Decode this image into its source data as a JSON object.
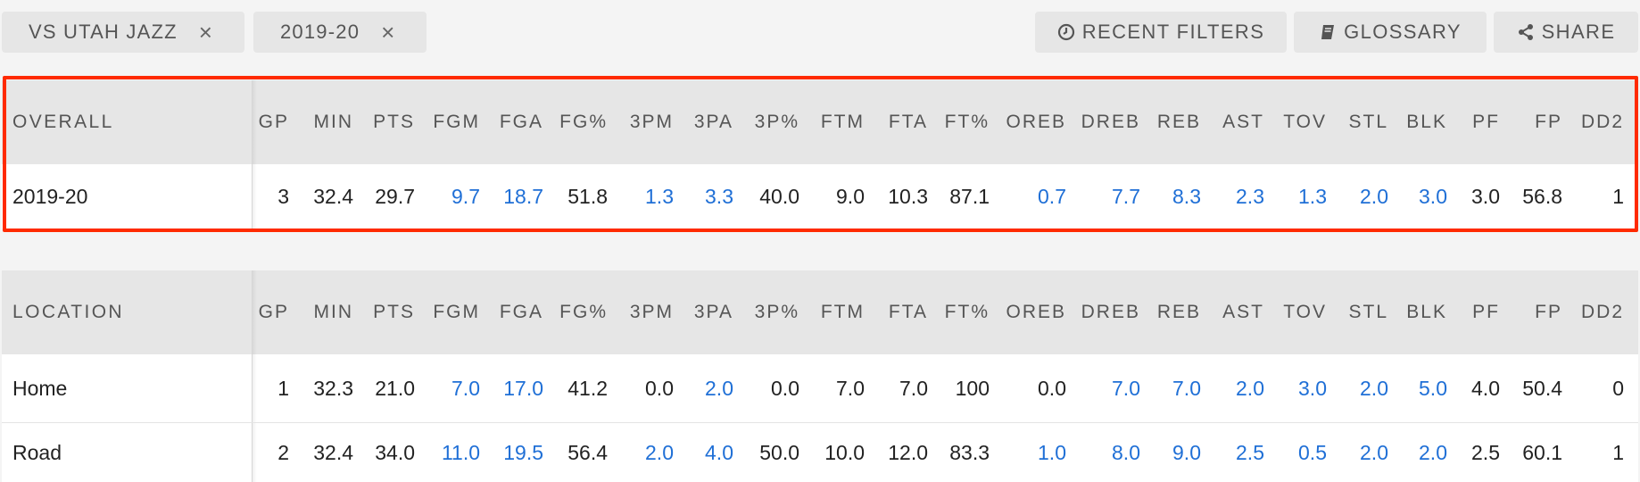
{
  "filters": [
    {
      "label": "VS UTAH JAZZ",
      "remove": "×"
    },
    {
      "label": "2019-20",
      "remove": "×"
    }
  ],
  "actions": {
    "recent_filters": "RECENT FILTERS",
    "glossary": "GLOSSARY",
    "share": "SHARE"
  },
  "columns": [
    "GP",
    "MIN",
    "PTS",
    "FGM",
    "FGA",
    "FG%",
    "3PM",
    "3PA",
    "3P%",
    "FTM",
    "FTA",
    "FT%",
    "OREB",
    "DREB",
    "REB",
    "AST",
    "TOV",
    "STL",
    "BLK",
    "PF",
    "FP",
    "DD2"
  ],
  "overall": {
    "title": "OVERALL",
    "rows": [
      {
        "label": "2019-20",
        "values": [
          "3",
          "32.4",
          "29.7",
          "9.7",
          "18.7",
          "51.8",
          "1.3",
          "3.3",
          "40.0",
          "9.0",
          "10.3",
          "87.1",
          "0.7",
          "7.7",
          "8.3",
          "2.3",
          "1.3",
          "2.0",
          "3.0",
          "3.0",
          "56.8",
          "1"
        ]
      }
    ]
  },
  "location": {
    "title": "LOCATION",
    "rows": [
      {
        "label": "Home",
        "values": [
          "1",
          "32.3",
          "21.0",
          "7.0",
          "17.0",
          "41.2",
          "0.0",
          "2.0",
          "0.0",
          "7.0",
          "7.0",
          "100",
          "0.0",
          "7.0",
          "7.0",
          "2.0",
          "3.0",
          "2.0",
          "5.0",
          "4.0",
          "50.4",
          "0"
        ]
      },
      {
        "label": "Road",
        "values": [
          "2",
          "32.4",
          "34.0",
          "11.0",
          "19.5",
          "56.4",
          "2.0",
          "4.0",
          "50.0",
          "10.0",
          "12.0",
          "83.3",
          "1.0",
          "8.0",
          "9.0",
          "2.5",
          "0.5",
          "2.0",
          "2.0",
          "2.5",
          "60.1",
          "1"
        ]
      }
    ]
  },
  "colors": {
    "link": "#1f6fd6",
    "highlight": "#ff2a00",
    "header_bg": "#e6e6e6"
  }
}
